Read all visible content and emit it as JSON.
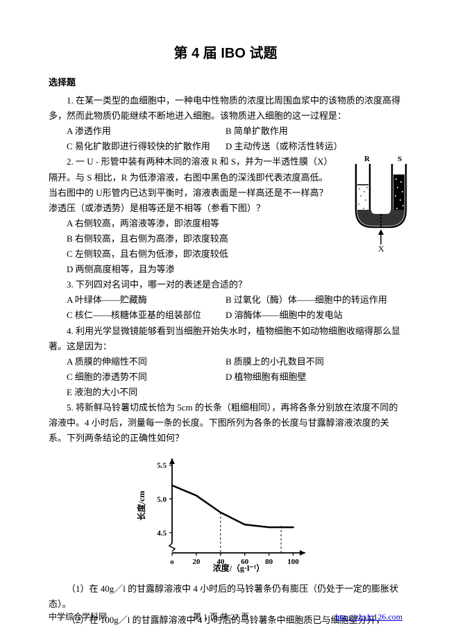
{
  "title": "第 4 届 IBO 试题",
  "section_header": "选择题",
  "q1": {
    "text": "1.  在某一类型的血细胞中，一种电中性物质的浓度比周围血浆中的该物质的浓度高得多，然而此物质仍能继续不断地进入细胞。该物质进入细胞的这一过程是：",
    "A": "A    渗透作用",
    "B": "B    简单扩散作用",
    "C": "C    易化扩散即进行得较快的扩散作用",
    "D": "D    主动传送（或称活性转运）"
  },
  "q2": {
    "text": "2.  一 U - 形管中装有两种木同的溶液 R 和 S，并为一半透性膜（X）隔开。与 S 相比，R 为低渗溶液，右图中黑色的深浅即代表浓度高低。当右图中的 U形管内已达到平衡时，溶液表面是一样高还是不一样高？渗透压（或渗透势）是相等还是不相等（参看下图）？",
    "A": "A    右侧较高，两溶液等渗，即浓度相等",
    "B": "B    右侧较高，且右侧为高渗，即浓度较高",
    "C": "C    左侧较高，且右侧为低渗，即浓度较低",
    "D": "D    两侧高度相等，且为等渗",
    "diagram": {
      "R": "R",
      "S": "S",
      "X": "X"
    }
  },
  "q3": {
    "text": "3.  下列四对名词中，哪一对的表述是合适的？",
    "A": "A    叶绿体——贮藏酶",
    "B": "B    过氧化（酶）体——细胞中的转运作用",
    "C": "C    核仁——核糖体亚基的组装部位",
    "D": "D    溶酶体——细胞中的发电站"
  },
  "q4": {
    "text": "4.  利用光学显微镜能够看到当细胞开始失水时，植物细胞不如动物细胞收缩得那么显著。这是因为：",
    "A": "A    质膜的伸缩性不同",
    "B": "B    质膜上的小孔数目不同",
    "C": "C    细胞的渗透势不同",
    "D": "D    植物细胞有细胞壁",
    "E": "E    液泡的大小不同"
  },
  "q5": {
    "text": "5.  将新鲜马铃薯切成长恰为 5cm 的长条（粗细相同），再将各条分别放在浓度不同的溶液中。4 小时后，测量每一条的长度。下图所列为各条的长度与甘露醇溶液浓度的关系。下列两条结论的正确性如何？",
    "chart": {
      "type": "line",
      "xvals": [
        0,
        20,
        40,
        60,
        80,
        100
      ],
      "yvals": [
        5.2,
        5.05,
        4.8,
        4.62,
        4.58,
        4.58
      ],
      "xmin": 0,
      "xmax": 110,
      "ymin_break": 4.2,
      "ymax": 5.6,
      "yticks": [
        4.5,
        5.0,
        5.5
      ],
      "xticks": [
        0,
        20,
        40,
        60,
        80,
        100
      ],
      "ylabel": "长度/cm",
      "xlabel": "浓度/（g·l⁻¹）",
      "line_width": 2.5,
      "line_color": "#000000",
      "axis_color": "#000000",
      "tick_fontsize": 11,
      "label_fontsize": 12,
      "dashed_x": [
        40,
        90
      ]
    },
    "sub1": "（1）在 40g／l 的甘露醇溶液中 4 小时后的马铃薯条仍有膨压（仍处于一定的膨胀状态）。",
    "sub2": "（2）在 100g／l 的甘露醇溶液中 4  小时后的马铃薯条中细胞质已与细胞壁分开，"
  },
  "footer": {
    "left": "中学综合学科网",
    "center": "第  1  页  共 27 页",
    "right_text": "http://zhxk.126.com",
    "right_href": "http://zhxk.126.com"
  }
}
